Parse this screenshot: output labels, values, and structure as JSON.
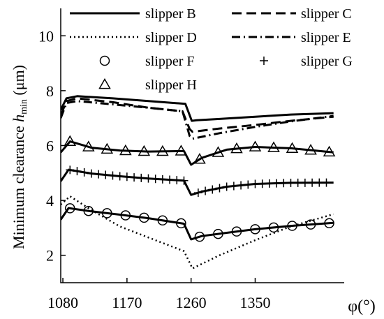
{
  "chart_data": {
    "type": "line",
    "ylabel_main": "Minimum clearance ",
    "ylabel_var": "h",
    "ylabel_sub": "min",
    "ylabel_unit": " (μm)",
    "xlabel": "φ(°)",
    "xlim": [
      1077,
      1475
    ],
    "ylim": [
      1,
      11
    ],
    "xticks": [
      1080,
      1170,
      1260,
      1350
    ],
    "yticks": [
      2,
      4,
      6,
      8,
      10
    ],
    "grid": false,
    "legend_position": "top",
    "series": [
      {
        "name": "slipper B",
        "style": "solid",
        "marker": "none",
        "points": [
          [
            1077,
            7.3
          ],
          [
            1085,
            7.72
          ],
          [
            1100,
            7.8
          ],
          [
            1150,
            7.72
          ],
          [
            1200,
            7.62
          ],
          [
            1252,
            7.52
          ],
          [
            1261,
            6.9
          ],
          [
            1268,
            6.92
          ],
          [
            1300,
            6.97
          ],
          [
            1350,
            7.05
          ],
          [
            1400,
            7.13
          ],
          [
            1460,
            7.18
          ]
        ]
      },
      {
        "name": "slipper C",
        "style": "dashed",
        "marker": "none",
        "points": [
          [
            1077,
            7.1
          ],
          [
            1085,
            7.62
          ],
          [
            1100,
            7.72
          ],
          [
            1150,
            7.58
          ],
          [
            1200,
            7.38
          ],
          [
            1248,
            7.25
          ],
          [
            1258,
            6.6
          ],
          [
            1262,
            6.5
          ],
          [
            1300,
            6.62
          ],
          [
            1350,
            6.75
          ],
          [
            1400,
            6.9
          ],
          [
            1460,
            7.05
          ]
        ]
      },
      {
        "name": "slipper D",
        "style": "dotted",
        "marker": "none",
        "points": [
          [
            1077,
            3.85
          ],
          [
            1090,
            4.15
          ],
          [
            1120,
            3.65
          ],
          [
            1160,
            3.05
          ],
          [
            1200,
            2.65
          ],
          [
            1250,
            2.15
          ],
          [
            1262,
            1.52
          ],
          [
            1300,
            2.0
          ],
          [
            1350,
            2.55
          ],
          [
            1400,
            3.05
          ],
          [
            1460,
            3.5
          ]
        ]
      },
      {
        "name": "slipper E",
        "style": "dashdot",
        "marker": "none",
        "points": [
          [
            1077,
            7.0
          ],
          [
            1085,
            7.55
          ],
          [
            1100,
            7.62
          ],
          [
            1150,
            7.5
          ],
          [
            1200,
            7.38
          ],
          [
            1248,
            7.25
          ],
          [
            1258,
            6.35
          ],
          [
            1262,
            6.25
          ],
          [
            1300,
            6.45
          ],
          [
            1350,
            6.68
          ],
          [
            1400,
            6.88
          ],
          [
            1460,
            7.08
          ]
        ]
      },
      {
        "name": "slipper F",
        "style": "solid",
        "marker": "circle",
        "points": [
          [
            1077,
            3.3
          ],
          [
            1088,
            3.72
          ],
          [
            1120,
            3.6
          ],
          [
            1160,
            3.48
          ],
          [
            1200,
            3.35
          ],
          [
            1250,
            3.15
          ],
          [
            1260,
            2.58
          ],
          [
            1275,
            2.7
          ],
          [
            1310,
            2.82
          ],
          [
            1350,
            2.95
          ],
          [
            1400,
            3.07
          ],
          [
            1460,
            3.18
          ]
        ],
        "markers_x": [
          1090,
          1116,
          1142,
          1168,
          1194,
          1220,
          1246,
          1272,
          1298,
          1324,
          1350,
          1376,
          1402,
          1428,
          1454
        ]
      },
      {
        "name": "slipper G",
        "style": "solid",
        "marker": "plus",
        "points": [
          [
            1077,
            4.7
          ],
          [
            1088,
            5.12
          ],
          [
            1120,
            4.98
          ],
          [
            1160,
            4.88
          ],
          [
            1200,
            4.8
          ],
          [
            1250,
            4.72
          ],
          [
            1260,
            4.2
          ],
          [
            1275,
            4.32
          ],
          [
            1310,
            4.5
          ],
          [
            1350,
            4.6
          ],
          [
            1400,
            4.64
          ],
          [
            1460,
            4.65
          ]
        ],
        "markers_x": [
          1090,
          1100,
          1110,
          1120,
          1130,
          1140,
          1150,
          1160,
          1170,
          1180,
          1190,
          1200,
          1210,
          1220,
          1230,
          1240,
          1250,
          1270,
          1280,
          1290,
          1300,
          1310,
          1320,
          1330,
          1340,
          1350,
          1360,
          1370,
          1380,
          1390,
          1400,
          1410,
          1420,
          1430,
          1440,
          1450
        ]
      },
      {
        "name": "slipper H",
        "style": "solid",
        "marker": "triangle",
        "points": [
          [
            1077,
            5.75
          ],
          [
            1090,
            6.15
          ],
          [
            1120,
            5.92
          ],
          [
            1160,
            5.82
          ],
          [
            1200,
            5.78
          ],
          [
            1250,
            5.8
          ],
          [
            1260,
            5.3
          ],
          [
            1275,
            5.55
          ],
          [
            1310,
            5.85
          ],
          [
            1350,
            5.95
          ],
          [
            1400,
            5.9
          ],
          [
            1460,
            5.75
          ]
        ],
        "markers_x": [
          1090,
          1116,
          1142,
          1168,
          1194,
          1220,
          1246,
          1272,
          1298,
          1324,
          1350,
          1376,
          1402,
          1428,
          1454
        ]
      }
    ]
  }
}
